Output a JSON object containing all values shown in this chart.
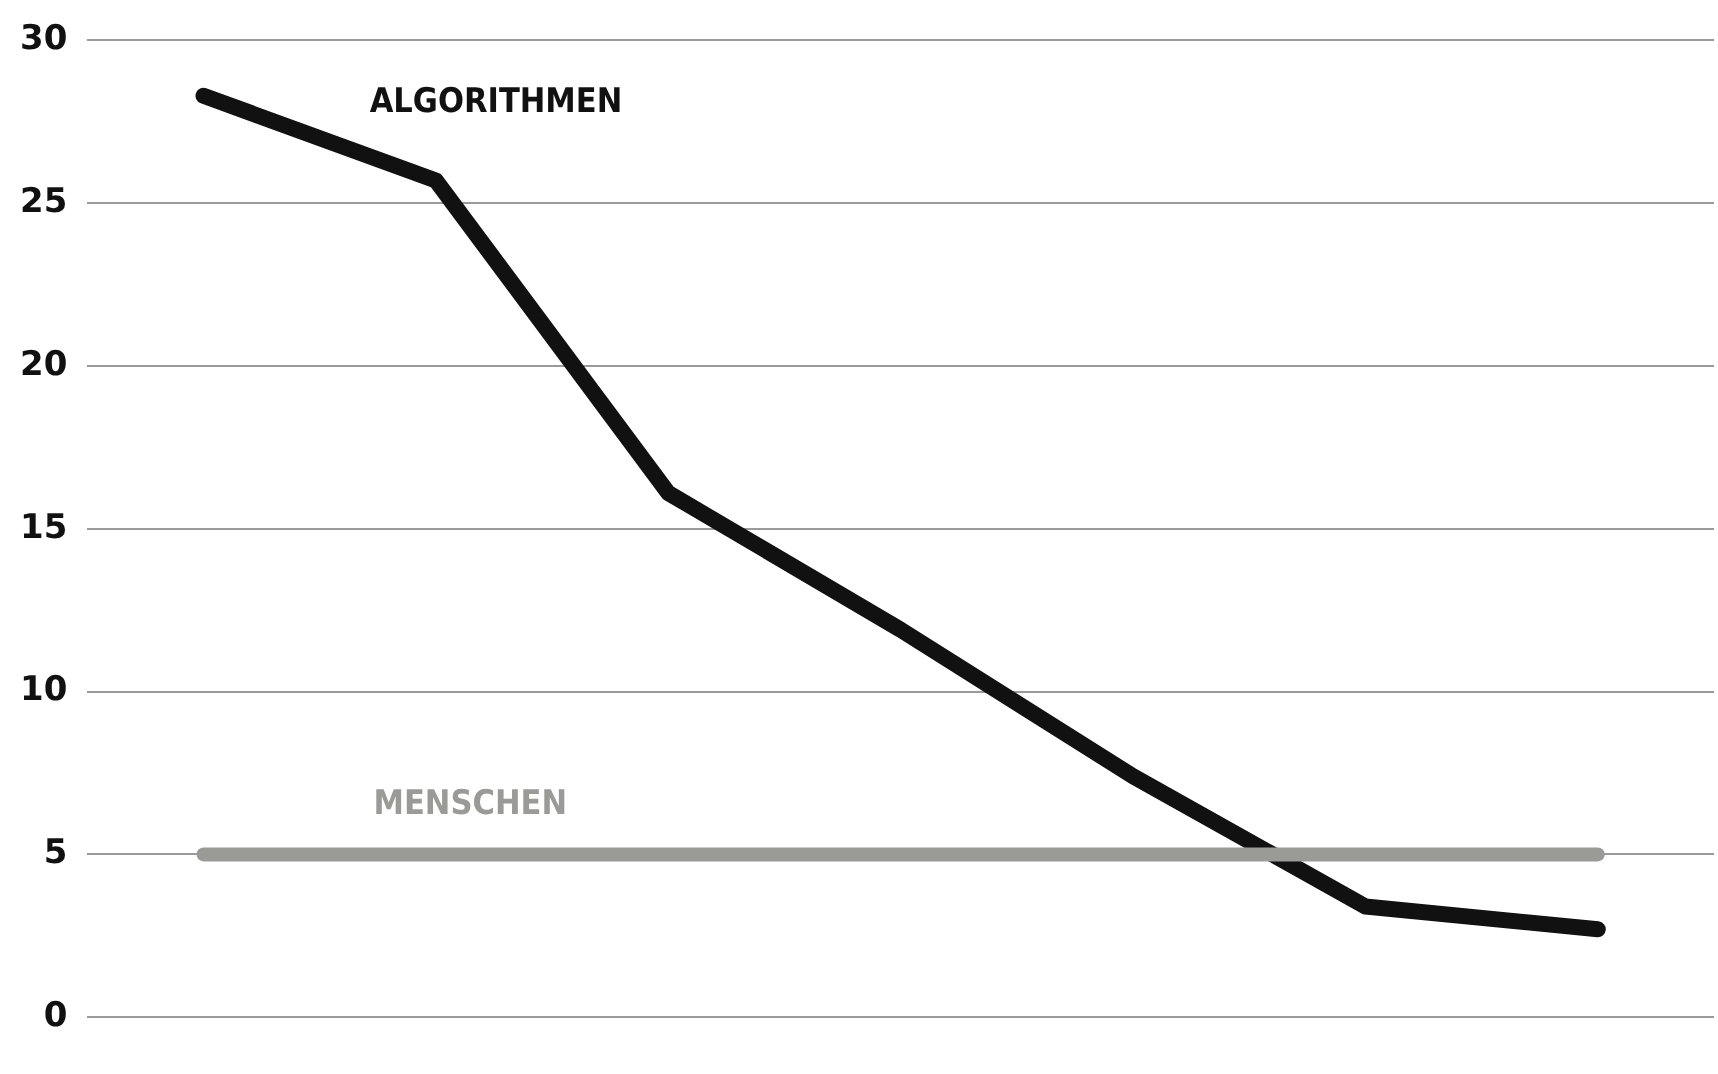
{
  "chart_data": {
    "type": "line",
    "categories": [
      null,
      null,
      null,
      null,
      null,
      null,
      null
    ],
    "series": [
      {
        "name": "ALGORITHMEN",
        "color": "#111111",
        "values": [
          28.3,
          25.7,
          16.1,
          11.9,
          7.4,
          3.4,
          2.7
        ]
      },
      {
        "name": "MENSCHEN",
        "color": "#9a9a96",
        "values": [
          5,
          5,
          5,
          5,
          5,
          5,
          5
        ]
      }
    ],
    "ylim": [
      0,
      30
    ],
    "yticks": [
      0,
      5,
      10,
      15,
      20,
      25,
      30
    ],
    "grid": "y",
    "legend": false,
    "marker": "none",
    "line_style": "solid"
  }
}
